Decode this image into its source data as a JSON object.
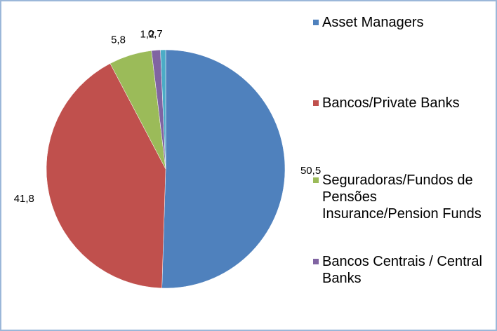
{
  "chart_data": {
    "type": "pie",
    "categories": [
      "Asset Managers",
      "Bancos/Private Banks",
      "Seguradoras/Fundos de Pensões Insurance/Pension Funds",
      "Bancos Centrais / Central Banks",
      null
    ],
    "values": [
      50.5,
      41.8,
      5.8,
      1.2,
      0.7
    ],
    "value_labels": [
      "50,5",
      "41,8",
      "5,8",
      "1,2",
      "0,7"
    ],
    "colors": [
      "#4f81bd",
      "#c0504d",
      "#9bbb59",
      "#8064a2",
      "#4bacc6"
    ],
    "legend": "right"
  }
}
